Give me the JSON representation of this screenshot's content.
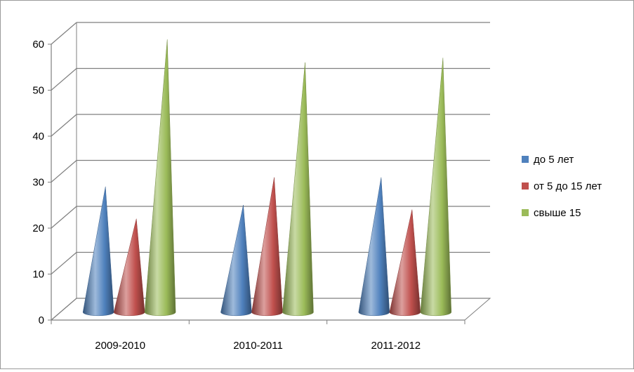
{
  "chart_data": {
    "type": "bar",
    "shape": "cone",
    "categories": [
      "2009-2010",
      "2010-2011",
      "2011-2012"
    ],
    "series": [
      {
        "name": "до 5 лет",
        "color": "#4f81bd",
        "values": [
          26,
          22,
          28
        ]
      },
      {
        "name": "от 5 до 15 лет",
        "color": "#c0504d",
        "values": [
          19,
          28,
          21
        ]
      },
      {
        "name": "свыше 15",
        "color": "#9bbb59",
        "values": [
          58,
          53,
          54
        ]
      }
    ],
    "yticks": [
      0,
      10,
      20,
      30,
      40,
      50,
      60
    ],
    "ylim": [
      0,
      60
    ],
    "grid": true,
    "legend": "right",
    "title": "",
    "xlabel": "",
    "ylabel": ""
  }
}
